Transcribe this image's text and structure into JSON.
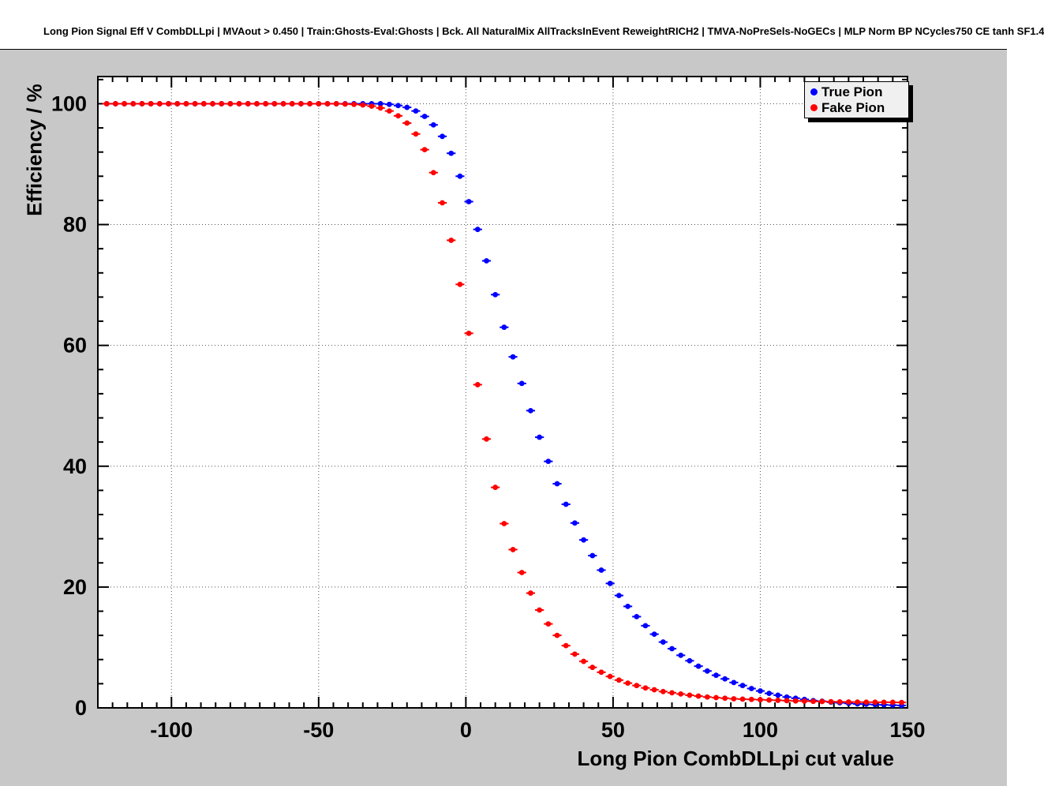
{
  "chart_data": {
    "type": "scatter",
    "title": "Long Pion Signal Eff V CombDLLpi | MVAout > 0.450 | Train:Ghosts-Eval:Ghosts | Bck. All NaturalMix AllTracksInEvent ReweightRICH2 | TMVA-NoPreSels-NoGECs | MLP Norm BP NCycles750 CE tanh SF1.4",
    "xlabel": "Long Pion CombDLLpi cut value",
    "ylabel": "Efficiency / %",
    "xlim": [
      -125,
      150
    ],
    "ylim": [
      0,
      104.5
    ],
    "xticks": [
      -100,
      -50,
      0,
      50,
      100,
      150
    ],
    "yticks": [
      0,
      20,
      40,
      60,
      80,
      100
    ],
    "x_minor_step": 5,
    "y_minor_step": 4,
    "grid": true,
    "legend_position": "top-right",
    "x": [
      -122,
      -119,
      -116,
      -113,
      -110,
      -107,
      -104,
      -101,
      -98,
      -95,
      -92,
      -89,
      -86,
      -83,
      -80,
      -77,
      -74,
      -71,
      -68,
      -65,
      -62,
      -59,
      -56,
      -53,
      -50,
      -47,
      -44,
      -41,
      -38,
      -35,
      -32,
      -29,
      -26,
      -23,
      -20,
      -17,
      -14,
      -11,
      -8,
      -5,
      -2,
      1,
      4,
      7,
      10,
      13,
      16,
      19,
      22,
      25,
      28,
      31,
      34,
      37,
      40,
      43,
      46,
      49,
      52,
      55,
      58,
      61,
      64,
      67,
      70,
      73,
      76,
      79,
      82,
      85,
      88,
      91,
      94,
      97,
      100,
      103,
      106,
      109,
      112,
      115,
      118,
      121,
      124,
      127,
      130,
      133,
      136,
      139,
      142,
      145,
      148
    ],
    "series": [
      {
        "name": "True Pion",
        "color": "#0000ff",
        "values": [
          100,
          100,
          100,
          100,
          100,
          100,
          100,
          100,
          100,
          100,
          100,
          100,
          100,
          100,
          100,
          100,
          100,
          100,
          100,
          100,
          100,
          100,
          100,
          100,
          100,
          100,
          100,
          100,
          100,
          100,
          100,
          100,
          99.9,
          99.7,
          99.4,
          98.8,
          97.9,
          96.5,
          94.6,
          91.8,
          88.0,
          83.8,
          79.2,
          74.0,
          68.4,
          63.0,
          58.1,
          53.7,
          49.2,
          44.8,
          40.8,
          37.1,
          33.7,
          30.6,
          27.8,
          25.2,
          22.8,
          20.6,
          18.6,
          16.8,
          15.1,
          13.6,
          12.2,
          10.9,
          9.8,
          8.7,
          7.8,
          6.9,
          6.1,
          5.4,
          4.8,
          4.2,
          3.7,
          3.2,
          2.8,
          2.4,
          2.1,
          1.8,
          1.6,
          1.4,
          1.2,
          1.1,
          0.95,
          0.85,
          0.75,
          0.65,
          0.6,
          0.55,
          0.5,
          0.45,
          0.4
        ]
      },
      {
        "name": "Fake Pion",
        "color": "#ff0000",
        "values": [
          100,
          100,
          100,
          100,
          100,
          100,
          100,
          100,
          100,
          100,
          100,
          100,
          100,
          100,
          100,
          100,
          100,
          100,
          100,
          100,
          100,
          100,
          100,
          100,
          100,
          100,
          100,
          99.95,
          99.9,
          99.8,
          99.6,
          99.3,
          98.8,
          98.0,
          96.8,
          95.0,
          92.4,
          88.6,
          83.6,
          77.4,
          70.1,
          62.0,
          53.5,
          44.5,
          36.5,
          30.5,
          26.2,
          22.4,
          19.0,
          16.2,
          13.9,
          12.0,
          10.3,
          8.9,
          7.7,
          6.7,
          5.9,
          5.2,
          4.6,
          4.1,
          3.7,
          3.3,
          3.0,
          2.7,
          2.5,
          2.3,
          2.1,
          1.95,
          1.8,
          1.7,
          1.6,
          1.5,
          1.45,
          1.4,
          1.35,
          1.3,
          1.25,
          1.2,
          1.15,
          1.12,
          1.08,
          1.05,
          1.02,
          1.0,
          0.98,
          0.96,
          0.95,
          0.94,
          0.93,
          0.92,
          0.9
        ]
      }
    ]
  },
  "style": {
    "canvas_bg": "#c8c8c8",
    "plot_bg": "#ffffff",
    "frame_color": "#000000",
    "grid_color": "#555555",
    "legend_bg": "#f0f0f0",
    "tick_label_color": "#000000"
  }
}
